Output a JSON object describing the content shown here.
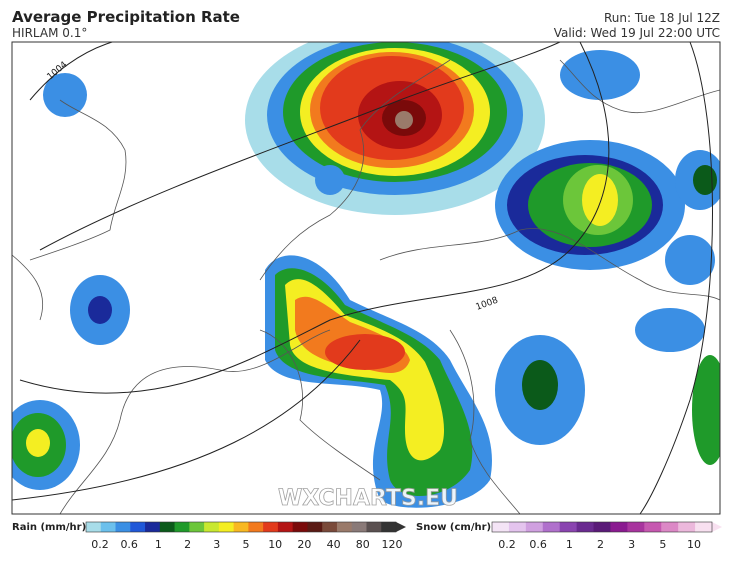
{
  "header": {
    "title": "Average Precipitation Rate",
    "model": "HIRLAM 0.1°",
    "run": "Run: Tue 18 Jul 12Z",
    "valid": "Valid: Wed 19 Jul 22:00 UTC"
  },
  "map": {
    "watermark": "WXCHARTS.EU",
    "isobars": [
      "1004",
      "1008"
    ]
  },
  "legend": {
    "rain": {
      "label": "Rain (mm/hr)",
      "ticks": [
        0.2,
        0.6,
        1,
        2,
        3,
        5,
        10,
        20,
        40,
        80,
        120
      ],
      "colors": [
        "#a8dde9",
        "#6cc0ec",
        "#3b8fe4",
        "#2058d8",
        "#1a2a9a",
        "#0b5a1a",
        "#1f9a2a",
        "#6cc63a",
        "#c8e830",
        "#f4ee22",
        "#f8b822",
        "#f27a1e",
        "#e23a1c",
        "#b41414",
        "#7a0a0a",
        "#5a1a14",
        "#7a4a3a",
        "#9a7a6a",
        "#8a7a78",
        "#5a5050",
        "#333333"
      ]
    },
    "snow": {
      "label": "Snow (cm/hr)",
      "ticks": [
        0.2,
        0.6,
        1,
        2,
        3,
        5,
        10
      ],
      "colors": [
        "#f4e4f6",
        "#e4c4ee",
        "#d0a0e0",
        "#b070cc",
        "#8a44b0",
        "#6a2a90",
        "#5a1a78",
        "#8a1a90",
        "#a8349e",
        "#c658b0",
        "#dc88c6",
        "#ecb8dc",
        "#f8e0f0"
      ]
    }
  }
}
